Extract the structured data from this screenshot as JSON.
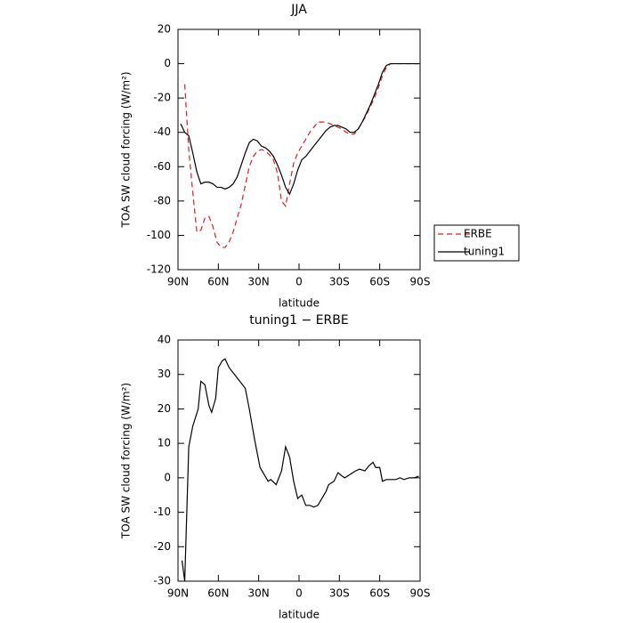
{
  "chart_data": [
    {
      "type": "line",
      "title": "JJA",
      "xlabel": "latitude",
      "ylabel": "TOA SW cloud forcing (W/m²)",
      "x": [
        88,
        85,
        82,
        79,
        76,
        73,
        70,
        67,
        64,
        61,
        58,
        55,
        52,
        49,
        46,
        43,
        40,
        37,
        34,
        31,
        28,
        25,
        22,
        19,
        16,
        13,
        10,
        7,
        4,
        1,
        -2,
        -5,
        -8,
        -11,
        -14,
        -17,
        -20,
        -23,
        -26,
        -29,
        -32,
        -35,
        -38,
        -41,
        -44,
        -47,
        -50,
        -53,
        -56,
        -59,
        -62,
        -65,
        -68,
        -71,
        -74,
        -77,
        -80,
        -83,
        -86,
        -89
      ],
      "series": [
        {
          "name": "ERBE",
          "color": "#e41a1c",
          "dash": "dashed",
          "values": [
            null,
            -12,
            -50,
            -75,
            -98,
            -97,
            -90,
            -89,
            -95,
            -104,
            -107,
            -107,
            -104,
            -98,
            -90,
            -82,
            -71,
            -60,
            -54,
            -51,
            -50,
            -51,
            -53,
            -56,
            -64,
            -80,
            -83,
            -70,
            -58,
            -52,
            -48,
            -44,
            -40,
            -37,
            -34,
            -34,
            -34,
            -35,
            -36,
            -37,
            -38,
            -40,
            -41,
            -41,
            -38,
            -34,
            -30,
            -25,
            -20,
            -14,
            -7,
            -2,
            0,
            0,
            0,
            0,
            0,
            0,
            0,
            0
          ]
        },
        {
          "name": "tuning1",
          "color": "#000000",
          "dash": "solid",
          "values": [
            -35,
            -40,
            -42,
            -52,
            -63,
            -70,
            -69,
            -69,
            -70,
            -72,
            -72,
            -73,
            -72,
            -70,
            -66,
            -59,
            -52,
            -46,
            -44,
            -45,
            -48,
            -49,
            -51,
            -54,
            -59,
            -65,
            -72,
            -76,
            -70,
            -62,
            -56,
            -54,
            -51,
            -48,
            -45,
            -42,
            -39,
            -37,
            -36,
            -36,
            -37,
            -38,
            -40,
            -40,
            -38,
            -34,
            -29,
            -24,
            -18,
            -12,
            -5,
            -1,
            0,
            0,
            0,
            0,
            0,
            0,
            0,
            0
          ]
        }
      ],
      "xlim": [
        90,
        -90
      ],
      "xticks": [
        {
          "value": 90,
          "label": "90N"
        },
        {
          "value": 60,
          "label": "60N"
        },
        {
          "value": 30,
          "label": "30N"
        },
        0,
        {
          "value": -30,
          "label": "30S"
        },
        {
          "value": -60,
          "label": "60S"
        },
        {
          "value": -90,
          "label": "90S"
        }
      ],
      "ylim": [
        -120,
        20
      ],
      "yticks": [
        -120,
        -100,
        -80,
        -60,
        -40,
        -20,
        0,
        20
      ],
      "legend": "right"
    },
    {
      "type": "line",
      "title": "tuning1 − ERBE",
      "xlabel": "latitude",
      "ylabel": "TOA SW cloud forcing (W/m²)",
      "x": [
        87,
        85,
        82,
        79,
        75,
        73,
        70,
        67,
        65,
        62,
        60,
        57,
        55,
        52,
        48,
        44,
        40,
        37,
        33,
        29,
        26,
        23,
        21,
        17,
        13,
        10,
        7,
        4,
        1,
        -2,
        -5,
        -8,
        -11,
        -14,
        -17,
        -20,
        -22,
        -26,
        -29,
        -32,
        -34,
        -38,
        -42,
        -45,
        -49,
        -52,
        -55,
        -57,
        -60,
        -62,
        -65,
        -68,
        -72,
        -75,
        -78,
        -82,
        -86,
        -89
      ],
      "series": [
        {
          "color": "#000000",
          "dash": "solid",
          "values": [
            -24,
            -30,
            9,
            15,
            20,
            28,
            27,
            21,
            19,
            23,
            32,
            34,
            34.5,
            32,
            30,
            28,
            26,
            20,
            11,
            3,
            1,
            -1,
            -0.5,
            -2,
            2,
            9,
            6,
            -1,
            -6,
            -5,
            -8,
            -8,
            -8.5,
            -8,
            -6,
            -4,
            -2,
            -1,
            1.5,
            0.5,
            0,
            1,
            2,
            2.5,
            2,
            3.5,
            4.5,
            3,
            3,
            -1,
            -0.5,
            -0.5,
            -0.5,
            0,
            -0.5,
            0,
            0,
            0.5
          ]
        }
      ],
      "xlim": [
        90,
        -90
      ],
      "xticks": [
        {
          "value": 90,
          "label": "90N"
        },
        {
          "value": 60,
          "label": "60N"
        },
        {
          "value": 30,
          "label": "30N"
        },
        0,
        {
          "value": -30,
          "label": "30S"
        },
        {
          "value": -60,
          "label": "60S"
        },
        {
          "value": -90,
          "label": "90S"
        }
      ],
      "ylim": [
        -30,
        40
      ],
      "yticks": [
        -30,
        -20,
        -10,
        0,
        10,
        20,
        30,
        40
      ]
    }
  ]
}
